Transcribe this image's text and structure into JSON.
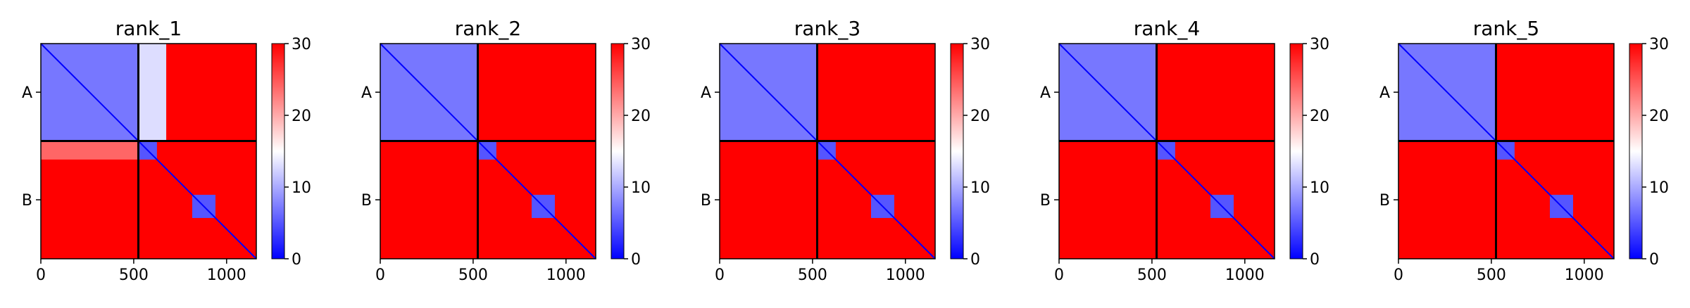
{
  "chart_data": [
    {
      "type": "heatmap",
      "title": "rank_1",
      "x_ticks": [
        0,
        500,
        1000
      ],
      "xlim": [
        0,
        1160
      ],
      "ylim": [
        0,
        1160
      ],
      "chain_boundary": 525,
      "y_chain_labels": [
        {
          "label": "A",
          "at": 262
        },
        {
          "label": "B",
          "at": 842
        }
      ],
      "colorbar": {
        "ticks": [
          0,
          10,
          20,
          30
        ],
        "min": 0,
        "max": 30,
        "colormap": "bwr"
      },
      "blocks": [
        {
          "x": [
            0,
            525
          ],
          "y": [
            0,
            525
          ],
          "value": 7
        },
        {
          "x": [
            525,
            675
          ],
          "y": [
            0,
            525
          ],
          "value": 13
        },
        {
          "x": [
            0,
            525
          ],
          "y": [
            525,
            625
          ],
          "value": 24
        },
        {
          "x": [
            525,
            625
          ],
          "y": [
            525,
            625
          ],
          "value": 5
        },
        {
          "x": [
            815,
            940
          ],
          "y": [
            815,
            940
          ],
          "value": 5
        }
      ]
    },
    {
      "type": "heatmap",
      "title": "rank_2",
      "x_ticks": [
        0,
        500,
        1000
      ],
      "xlim": [
        0,
        1160
      ],
      "ylim": [
        0,
        1160
      ],
      "chain_boundary": 525,
      "y_chain_labels": [
        {
          "label": "A",
          "at": 262
        },
        {
          "label": "B",
          "at": 842
        }
      ],
      "colorbar": {
        "ticks": [
          0,
          10,
          20,
          30
        ],
        "min": 0,
        "max": 30,
        "colormap": "bwr"
      },
      "blocks": [
        {
          "x": [
            0,
            525
          ],
          "y": [
            0,
            525
          ],
          "value": 7
        },
        {
          "x": [
            525,
            625
          ],
          "y": [
            525,
            625
          ],
          "value": 5
        },
        {
          "x": [
            815,
            940
          ],
          "y": [
            815,
            940
          ],
          "value": 5
        }
      ]
    },
    {
      "type": "heatmap",
      "title": "rank_3",
      "x_ticks": [
        0,
        500,
        1000
      ],
      "xlim": [
        0,
        1160
      ],
      "ylim": [
        0,
        1160
      ],
      "chain_boundary": 525,
      "y_chain_labels": [
        {
          "label": "A",
          "at": 262
        },
        {
          "label": "B",
          "at": 842
        }
      ],
      "colorbar": {
        "ticks": [
          0,
          10,
          20,
          30
        ],
        "min": 0,
        "max": 30,
        "colormap": "bwr"
      },
      "blocks": [
        {
          "x": [
            0,
            525
          ],
          "y": [
            0,
            525
          ],
          "value": 7
        },
        {
          "x": [
            525,
            625
          ],
          "y": [
            525,
            625
          ],
          "value": 5
        },
        {
          "x": [
            815,
            940
          ],
          "y": [
            815,
            940
          ],
          "value": 5
        }
      ]
    },
    {
      "type": "heatmap",
      "title": "rank_4",
      "x_ticks": [
        0,
        500,
        1000
      ],
      "xlim": [
        0,
        1160
      ],
      "ylim": [
        0,
        1160
      ],
      "chain_boundary": 525,
      "y_chain_labels": [
        {
          "label": "A",
          "at": 262
        },
        {
          "label": "B",
          "at": 842
        }
      ],
      "colorbar": {
        "ticks": [
          0,
          10,
          20,
          30
        ],
        "min": 0,
        "max": 30,
        "colormap": "bwr"
      },
      "blocks": [
        {
          "x": [
            0,
            525
          ],
          "y": [
            0,
            525
          ],
          "value": 7
        },
        {
          "x": [
            525,
            625
          ],
          "y": [
            525,
            625
          ],
          "value": 5
        },
        {
          "x": [
            815,
            940
          ],
          "y": [
            815,
            940
          ],
          "value": 5
        }
      ]
    },
    {
      "type": "heatmap",
      "title": "rank_5",
      "x_ticks": [
        0,
        500,
        1000
      ],
      "xlim": [
        0,
        1160
      ],
      "ylim": [
        0,
        1160
      ],
      "chain_boundary": 525,
      "y_chain_labels": [
        {
          "label": "A",
          "at": 262
        },
        {
          "label": "B",
          "at": 842
        }
      ],
      "colorbar": {
        "ticks": [
          0,
          10,
          20,
          30
        ],
        "min": 0,
        "max": 30,
        "colormap": "bwr"
      },
      "blocks": [
        {
          "x": [
            0,
            525
          ],
          "y": [
            0,
            525
          ],
          "value": 7
        },
        {
          "x": [
            525,
            625
          ],
          "y": [
            525,
            625
          ],
          "value": 5
        },
        {
          "x": [
            815,
            940
          ],
          "y": [
            815,
            940
          ],
          "value": 5
        }
      ]
    }
  ]
}
